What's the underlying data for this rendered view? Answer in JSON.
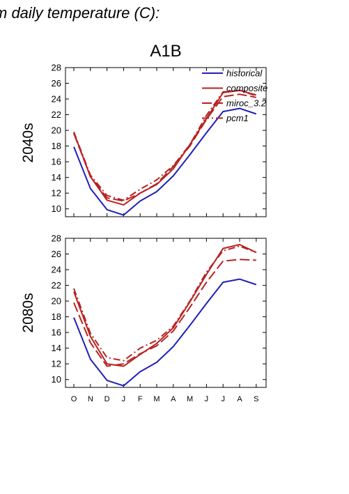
{
  "title": "m daily temperature (C):",
  "scenario": "A1B",
  "colors": {
    "historical": "#1f1fb8",
    "future": "#b82222"
  },
  "chart_data": [
    {
      "type": "line",
      "ylabel": "2040s",
      "categories": [
        "O",
        "N",
        "D",
        "J",
        "F",
        "M",
        "A",
        "M",
        "J",
        "J",
        "A",
        "S"
      ],
      "ylim": [
        9,
        28
      ],
      "yticks": [
        10,
        12,
        14,
        16,
        18,
        20,
        22,
        24,
        26,
        28
      ],
      "legend": "top-right",
      "series": [
        {
          "name": "historical",
          "style": "solid",
          "color": "#1f1fb8",
          "values": [
            17.9,
            12.6,
            9.9,
            9.2,
            11.0,
            12.2,
            14.2,
            16.9,
            19.7,
            22.4,
            22.8,
            22.1
          ]
        },
        {
          "name": "composite",
          "style": "solid",
          "color": "#b82222",
          "values": [
            19.7,
            14.1,
            11.1,
            10.5,
            12.0,
            13.1,
            15.1,
            18.2,
            21.5,
            24.8,
            25.1,
            24.5
          ]
        },
        {
          "name": "miroc_3.2",
          "style": "longdash",
          "color": "#b82222",
          "values": [
            19.6,
            14.1,
            11.4,
            11.0,
            12.0,
            13.2,
            15.4,
            18.0,
            21.4,
            24.3,
            24.6,
            24.2
          ]
        },
        {
          "name": "pcm1",
          "style": "dashdot",
          "color": "#b82222",
          "values": [
            19.8,
            14.3,
            11.7,
            11.1,
            12.5,
            13.7,
            15.5,
            18.2,
            21.9,
            24.9,
            25.1,
            24.4
          ]
        }
      ]
    },
    {
      "type": "line",
      "ylabel": "2080s",
      "categories": [
        "O",
        "N",
        "D",
        "J",
        "F",
        "M",
        "A",
        "M",
        "J",
        "J",
        "A",
        "S"
      ],
      "ylim": [
        9,
        28
      ],
      "yticks": [
        10,
        12,
        14,
        16,
        18,
        20,
        22,
        24,
        26,
        28
      ],
      "series": [
        {
          "name": "historical",
          "style": "solid",
          "color": "#1f1fb8",
          "values": [
            17.9,
            12.6,
            9.9,
            9.2,
            11.0,
            12.2,
            14.2,
            16.9,
            19.7,
            22.4,
            22.8,
            22.1
          ]
        },
        {
          "name": "composite",
          "style": "solid",
          "color": "#b82222",
          "values": [
            21.2,
            15.5,
            12.0,
            11.7,
            13.2,
            14.6,
            16.6,
            19.9,
            23.4,
            26.7,
            27.2,
            26.2
          ]
        },
        {
          "name": "miroc_3.2",
          "style": "longdash",
          "color": "#b82222",
          "values": [
            19.8,
            14.7,
            11.7,
            12.0,
            13.3,
            14.3,
            16.2,
            19.2,
            22.4,
            25.1,
            25.3,
            25.2
          ]
        },
        {
          "name": "pcm1",
          "style": "dashdot",
          "color": "#b82222",
          "values": [
            21.6,
            15.9,
            12.8,
            12.4,
            14.0,
            15.0,
            16.8,
            20.0,
            23.7,
            26.4,
            27.0,
            26.2
          ]
        }
      ]
    }
  ]
}
